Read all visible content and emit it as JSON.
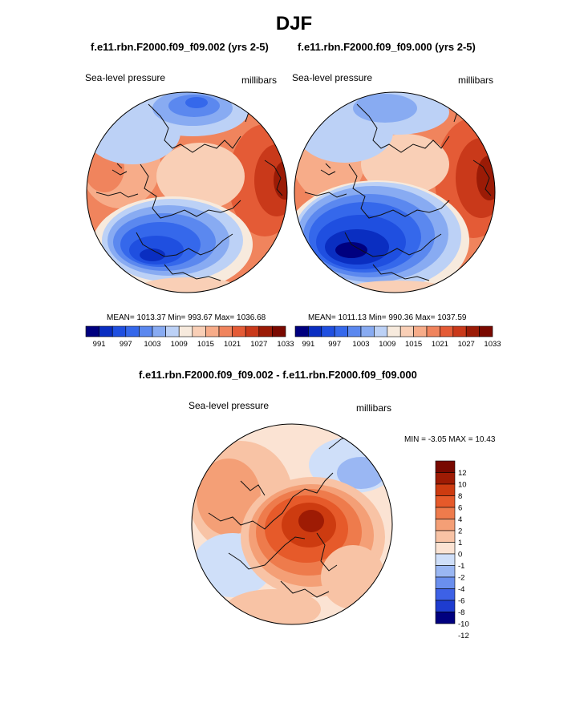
{
  "main_title": "DJF",
  "colors": {
    "abs_scale": [
      "#00007f",
      "#0a2ec1",
      "#1f4fe0",
      "#3568eb",
      "#5b88ef",
      "#88abf2",
      "#bcd1f6",
      "#f7eadd",
      "#f9cfb6",
      "#f7ac89",
      "#f0845d",
      "#e45b36",
      "#c9391a",
      "#9b1b06",
      "#7a0900"
    ],
    "diff_scale": [
      "#00007f",
      "#1e3ccf",
      "#3d61e6",
      "#6a8fee",
      "#9ab7f3",
      "#cfdff9",
      "#fbe3d3",
      "#f8c3a5",
      "#f49f76",
      "#ee7b4c",
      "#e65a2a",
      "#cd3b10",
      "#9e1b04",
      "#780900"
    ],
    "land_line": "#111111"
  },
  "chart_data": [
    {
      "type": "filled-contour-polar-map",
      "title": "f.e11.rbn.F2000.f09_f09.002 (yrs 2-5)",
      "left_label": "Sea-level pressure",
      "right_label": "millibars",
      "stats": {
        "mean": "1013.37",
        "min": "993.67",
        "max": "1036.68"
      },
      "stats_text": "MEAN= 1013.37  Min= 993.67  Max= 1036.68",
      "colorbar_levels": [
        988,
        991,
        994,
        997,
        1000,
        1003,
        1006,
        1009,
        1012,
        1015,
        1018,
        1021,
        1024,
        1027,
        1030,
        1033,
        1036
      ],
      "colorbar_tick_labels": [
        "991",
        "997",
        "1003",
        "1009",
        "1015",
        "1021",
        "1027",
        "1033"
      ]
    },
    {
      "type": "filled-contour-polar-map",
      "title": "f.e11.rbn.F2000.f09_f09.000 (yrs 2-5)",
      "left_label": "Sea-level pressure",
      "right_label": "millibars",
      "stats": {
        "mean": "1011.13",
        "min": "990.36",
        "max": "1037.59"
      },
      "stats_text": "MEAN= 1011.13  Min= 990.36  Max= 1037.59",
      "colorbar_levels": [
        988,
        991,
        994,
        997,
        1000,
        1003,
        1006,
        1009,
        1012,
        1015,
        1018,
        1021,
        1024,
        1027,
        1030,
        1033,
        1036
      ],
      "colorbar_tick_labels": [
        "991",
        "997",
        "1003",
        "1009",
        "1015",
        "1021",
        "1027",
        "1033"
      ]
    },
    {
      "type": "filled-contour-polar-map",
      "title": "f.e11.rbn.F2000.f09_f09.002 - f.e11.rbn.F2000.f09_f09.000",
      "left_label": "Sea-level pressure",
      "right_label": "millibars",
      "stats": {
        "min": "-3.05",
        "max": "10.43"
      },
      "stats_text": "MIN =  -3.05 MAX =  10.43",
      "colorbar_levels": [
        12,
        10,
        8,
        6,
        4,
        2,
        1,
        0,
        -1,
        -2,
        -4,
        -6,
        -8,
        -10,
        -12
      ],
      "colorbar_tick_labels": [
        "12",
        "10",
        "8",
        "6",
        "4",
        "2",
        "1",
        "0",
        "-1",
        "-2",
        "-4",
        "-6",
        "-8",
        "-10",
        "-12"
      ]
    }
  ]
}
